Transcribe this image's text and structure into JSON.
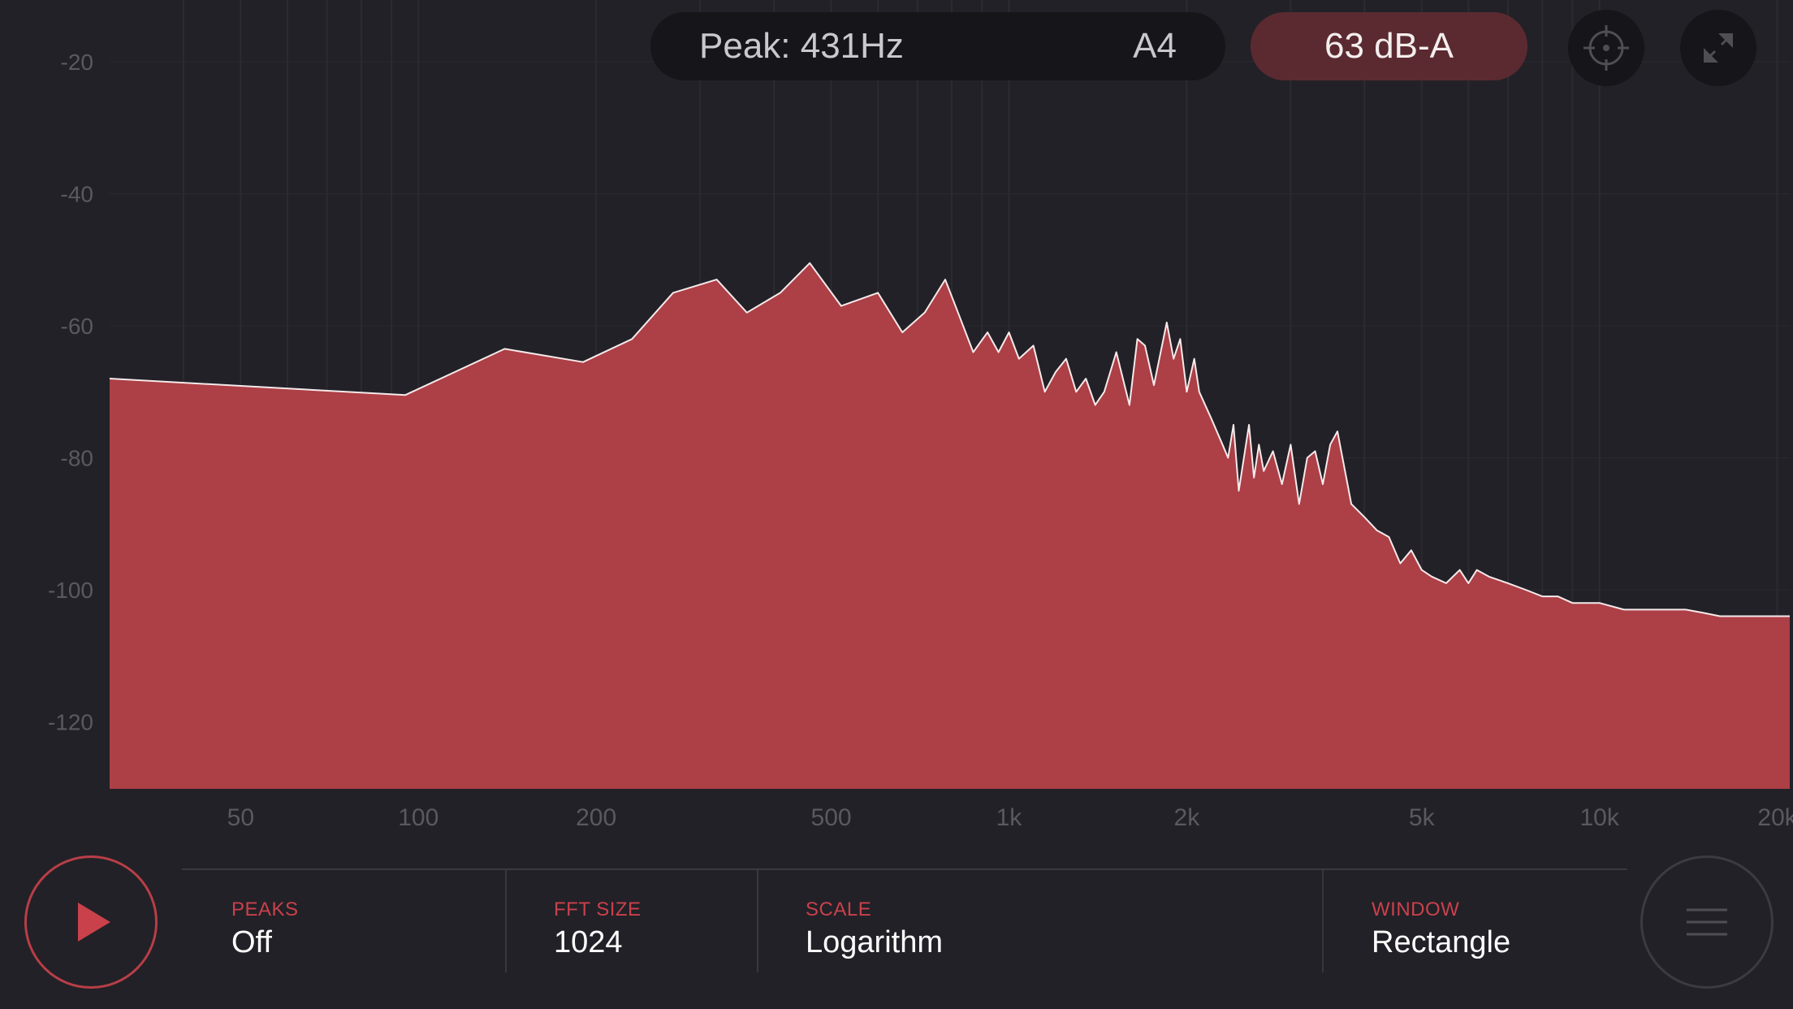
{
  "header": {
    "peak_label": "Peak: 431Hz",
    "note": "A4",
    "level": "63 dB-A"
  },
  "icons": {
    "target": "crosshair-icon",
    "fullscreen": "fullscreen-icon",
    "play": "play-icon",
    "menu": "menu-icon"
  },
  "settings": [
    {
      "label": "PEAKS",
      "value": "Off"
    },
    {
      "label": "FFT SIZE",
      "value": "1024"
    },
    {
      "label": "SCALE",
      "value": "Logarithm"
    },
    {
      "label": "WINDOW",
      "value": "Rectangle"
    }
  ],
  "colors": {
    "background": "#222127",
    "spectrum_fill": "#ad3f47",
    "accent": "#c9414b",
    "level_pill": "#5b2a30"
  },
  "chart_data": {
    "type": "area",
    "xscale": "log",
    "xlim": [
      30,
      21000
    ],
    "ylim": [
      -130,
      -16
    ],
    "xlabel": "",
    "ylabel": "",
    "grid": true,
    "y_ticks": [
      -20,
      -40,
      -60,
      -80,
      -100,
      -120
    ],
    "x_ticks": [
      {
        "value": 50,
        "label": "50"
      },
      {
        "value": 100,
        "label": "100"
      },
      {
        "value": 200,
        "label": "200"
      },
      {
        "value": 500,
        "label": "500"
      },
      {
        "value": 1000,
        "label": "1k"
      },
      {
        "value": 2000,
        "label": "2k"
      },
      {
        "value": 5000,
        "label": "5k"
      },
      {
        "value": 10000,
        "label": "10k"
      },
      {
        "value": 20000,
        "label": "20k"
      }
    ],
    "series": [
      {
        "x": [
          30,
          95,
          140,
          190,
          230,
          270,
          320,
          360,
          410,
          460,
          520,
          600,
          660,
          720,
          780,
          820,
          870,
          920,
          960,
          1000,
          1040,
          1100,
          1150,
          1200,
          1250,
          1300,
          1350,
          1400,
          1450,
          1520,
          1600,
          1650,
          1700,
          1760,
          1850,
          1900,
          1950,
          2000,
          2060,
          2100,
          2200,
          2300,
          2350,
          2400,
          2450,
          2550,
          2600,
          2650,
          2700,
          2800,
          2900,
          3000,
          3100,
          3200,
          3300,
          3400,
          3500,
          3600,
          3800,
          4000,
          4200,
          4400,
          4600,
          4800,
          5000,
          5200,
          5500,
          5800,
          6000,
          6200,
          6500,
          7000,
          7500,
          8000,
          8500,
          9000,
          10000,
          11000,
          12000,
          13000,
          14000,
          15000,
          16000,
          18000,
          21000
        ],
        "values": [
          -68,
          -70.5,
          -63.5,
          -65.5,
          -62,
          -55,
          -53,
          -58,
          -55,
          -50.5,
          -57,
          -55,
          -61,
          -58,
          -53,
          -58,
          -64,
          -61,
          -64,
          -61,
          -65,
          -63,
          -70,
          -67,
          -65,
          -70,
          -68,
          -72,
          -70,
          -64,
          -72,
          -62,
          -63,
          -69,
          -59.5,
          -65,
          -62,
          -70,
          -65,
          -70,
          -74,
          -78,
          -80,
          -75,
          -85,
          -75,
          -83,
          -78,
          -82,
          -79,
          -84,
          -78,
          -87,
          -80,
          -79,
          -84,
          -78,
          -76,
          -87,
          -89,
          -91,
          -92,
          -96,
          -94,
          -97,
          -98,
          -99,
          -97,
          -99,
          -97,
          -98,
          -99,
          -100,
          -101,
          -101,
          -102,
          -102,
          -103,
          -103,
          -103,
          -103,
          -103.5,
          -104,
          -104,
          -104
        ]
      }
    ]
  }
}
